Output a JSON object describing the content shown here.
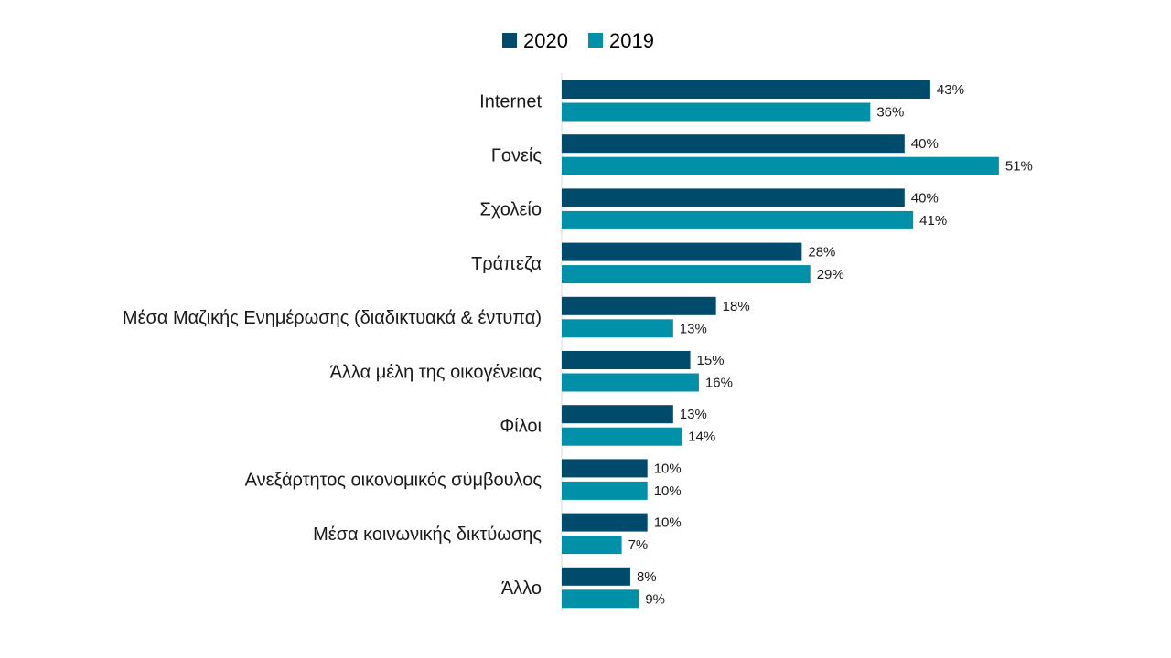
{
  "chart_data": {
    "type": "bar",
    "orientation": "horizontal",
    "title": "",
    "xlabel": "",
    "ylabel": "",
    "xlim": [
      0,
      60
    ],
    "grid": false,
    "legend_position": "top-center",
    "value_suffix": "%",
    "categories": [
      "Internet",
      "Γονείς",
      "Σχολείο",
      "Τράπεζα",
      "Μέσα Μαζικής Ενημέρωσης (διαδικτυακά & έντυπα)",
      "Άλλα μέλη της οικογένειας",
      "Φίλοι",
      "Ανεξάρτητος οικονομικός σύμβουλος",
      "Μέσα κοινωνικής δικτύωσης",
      "Άλλο"
    ],
    "series": [
      {
        "name": "2020",
        "color": "#004B6B",
        "values": [
          43,
          40,
          40,
          28,
          18,
          15,
          13,
          10,
          10,
          8
        ]
      },
      {
        "name": "2019",
        "color": "#0090A8",
        "values": [
          36,
          51,
          41,
          29,
          13,
          16,
          14,
          10,
          7,
          9
        ]
      }
    ]
  }
}
